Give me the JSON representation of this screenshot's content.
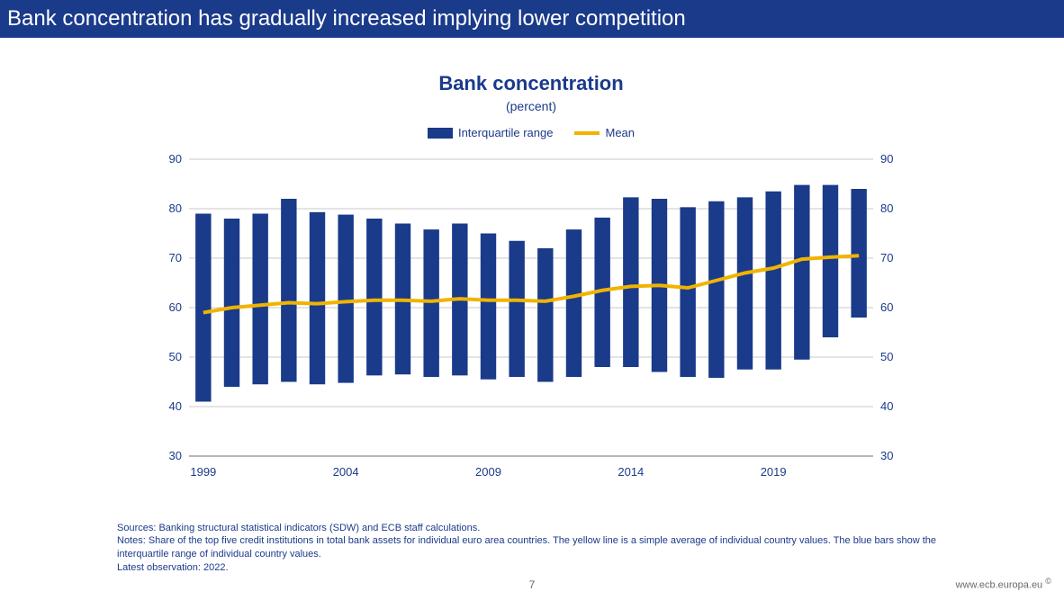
{
  "header": {
    "title": "Bank concentration has gradually increased implying lower competition",
    "bg_color": "#1a3a8a",
    "text_color": "#ffffff"
  },
  "chart": {
    "type": "bar_range_with_line",
    "title": "Bank concentration",
    "subtitle": "(percent)",
    "title_color": "#1a3a8a",
    "legend": {
      "bar_label": "Interquartile range",
      "line_label": "Mean"
    },
    "colors": {
      "bar": "#1a3a8a",
      "line": "#f0b400",
      "grid": "#c8c8c8",
      "axis_text": "#1a3a8a",
      "background": "#ffffff"
    },
    "y_axis": {
      "min": 30,
      "max": 90,
      "step": 10
    },
    "x_axis": {
      "start_year": 1999,
      "tick_years": [
        1999,
        2004,
        2009,
        2014,
        2019
      ]
    },
    "bar_width": 0.55,
    "line_width": 4,
    "series": {
      "years": [
        1999,
        2000,
        2001,
        2002,
        2003,
        2004,
        2005,
        2006,
        2007,
        2008,
        2009,
        2010,
        2011,
        2012,
        2013,
        2014,
        2015,
        2016,
        2017,
        2018,
        2019,
        2020,
        2021,
        2022
      ],
      "iqr_low": [
        41.0,
        44.0,
        44.5,
        45.0,
        44.5,
        44.8,
        46.3,
        46.5,
        46.0,
        46.3,
        45.5,
        46.0,
        45.0,
        46.0,
        48.0,
        48.0,
        47.0,
        46.0,
        45.8,
        47.5,
        47.5,
        49.5,
        54.0,
        58.0
      ],
      "iqr_high": [
        79.0,
        78.0,
        79.0,
        82.0,
        79.3,
        78.8,
        78.0,
        77.0,
        75.8,
        77.0,
        75.0,
        73.5,
        72.0,
        75.8,
        78.2,
        82.3,
        82.0,
        80.3,
        81.5,
        82.3,
        83.5,
        84.8,
        84.8,
        84.0
      ],
      "mean": [
        59.0,
        60.0,
        60.5,
        61.0,
        60.8,
        61.2,
        61.5,
        61.5,
        61.3,
        61.8,
        61.5,
        61.5,
        61.3,
        62.3,
        63.5,
        64.3,
        64.5,
        64.0,
        65.5,
        67.0,
        68.0,
        69.8,
        70.2,
        70.5
      ]
    }
  },
  "footer": {
    "sources": "Sources: Banking structural statistical indicators (SDW) and ECB staff calculations.",
    "notes": "Notes: Share of the top five credit institutions in total bank assets for individual euro area countries. The yellow line is a simple average of individual country values. The blue bars show the interquartile range of individual country values.",
    "latest": "Latest observation: 2022.",
    "page_number": "7",
    "site_url": "www.ecb.europa.eu",
    "copyright_mark": "©"
  }
}
